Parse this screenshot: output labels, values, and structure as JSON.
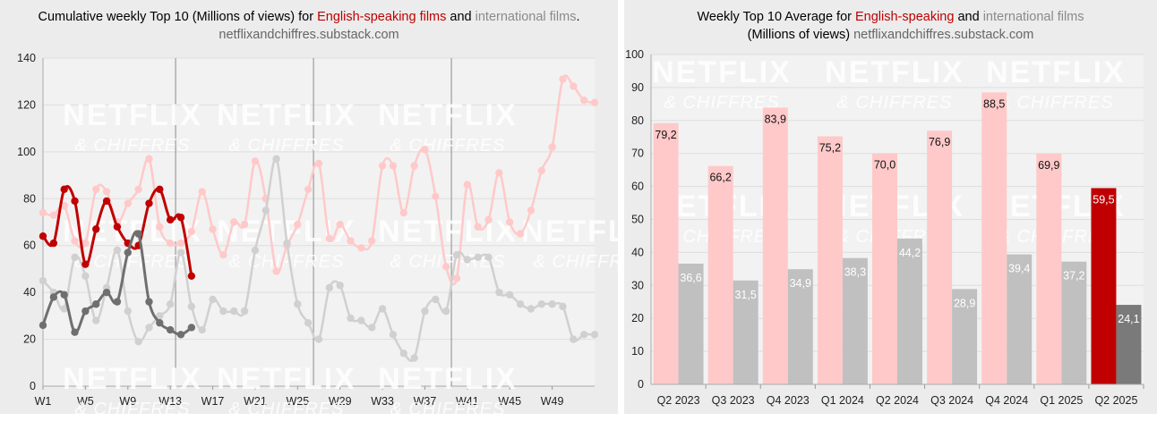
{
  "colors": {
    "english_current": "#c00000",
    "english_past": "#ffc9c9",
    "intl_current": "#6f6f6f",
    "intl_past": "#d0d0d0",
    "eng_bar": "#ffc9c9",
    "eng_bar_current": "#c00000",
    "intl_bar": "#c0c0c0",
    "intl_bar_current": "#7a7a7a",
    "panel_bg": "#ececec",
    "plot_bg": "#f2f2f2"
  },
  "watermark": {
    "line1": "NETFLIX",
    "line2": "& CHIFFRES"
  },
  "left": {
    "title_part1": "Cumulative weekly Top 10 (Millions of views) for ",
    "title_eng": "English-speaking films",
    "title_part2": " and ",
    "title_int": "international films",
    "title_part3": ".",
    "subtitle": "netflixandchiffres.substack.com"
  },
  "right": {
    "title_part1": "Weekly Top 10 Average for ",
    "title_eng": "English-speaking",
    "title_part2": " and ",
    "title_int": "international films",
    "subtitle_part1": "(Millions of views) ",
    "subtitle_src": "netflixandchiffres.substack.com"
  },
  "chart_data": [
    {
      "type": "line",
      "title": "Cumulative weekly Top 10 (Millions of views) for English-speaking films and international films.",
      "ylim": [
        0,
        140
      ],
      "yticks": [
        0,
        20,
        40,
        60,
        80,
        100,
        120,
        140
      ],
      "xlim": [
        1,
        53
      ],
      "xticks": [
        1,
        5,
        9,
        13,
        17,
        21,
        25,
        29,
        33,
        37,
        41,
        45,
        49
      ],
      "xtick_labels": [
        "W1",
        "W5",
        "W9",
        "W13",
        "W17",
        "W21",
        "W25",
        "W29",
        "W33",
        "W37",
        "W41",
        "W45",
        "W49"
      ],
      "grid": true,
      "vlines": [
        13.5,
        26.5,
        39.5
      ],
      "series": [
        {
          "role": "english_past",
          "x": [
            1,
            2,
            3,
            4,
            5,
            6,
            7,
            8,
            9,
            10,
            11,
            12,
            13,
            14,
            15,
            16,
            17,
            18,
            19,
            20,
            21,
            22,
            23,
            24,
            25,
            26,
            27,
            28,
            29,
            30,
            31,
            32,
            33,
            34,
            35,
            36,
            37,
            38,
            39,
            40,
            41,
            42,
            43,
            44,
            45,
            46,
            47,
            48,
            49,
            50,
            51,
            52,
            53
          ],
          "values": [
            74,
            73,
            77,
            62,
            61,
            84,
            83,
            70,
            78,
            84,
            97,
            68,
            61,
            61,
            66,
            83,
            67,
            56,
            70,
            69,
            96,
            80,
            49,
            60,
            69,
            84,
            95,
            63,
            69,
            62,
            59,
            62,
            94,
            94,
            74,
            94,
            101,
            81,
            51,
            46,
            86,
            68,
            71,
            91,
            70,
            65,
            75,
            92,
            102,
            131,
            128,
            122,
            121
          ]
        },
        {
          "role": "intl_past",
          "x": [
            1,
            2,
            3,
            4,
            5,
            6,
            7,
            8,
            9,
            10,
            11,
            12,
            13,
            14,
            15,
            16,
            17,
            18,
            19,
            20,
            21,
            22,
            23,
            24,
            25,
            26,
            27,
            28,
            29,
            30,
            31,
            32,
            33,
            34,
            35,
            36,
            37,
            38,
            39,
            40,
            41,
            42,
            43,
            44,
            45,
            46,
            47,
            48,
            49,
            50,
            51,
            52,
            53
          ],
          "values": [
            45,
            40,
            33,
            55,
            47,
            28,
            42,
            58,
            32,
            19,
            25,
            30,
            35,
            57,
            34,
            24,
            37,
            32,
            32,
            32,
            58,
            75,
            97,
            61,
            35,
            27,
            20,
            42,
            43,
            29,
            28,
            25,
            33,
            22,
            14,
            12,
            32,
            37,
            32,
            56,
            54,
            55,
            55,
            40,
            39,
            35,
            33,
            35,
            35,
            34,
            20,
            22,
            22
          ]
        },
        {
          "role": "english_current",
          "x": [
            1,
            2,
            3,
            4,
            5,
            6,
            7,
            8,
            9,
            10,
            11,
            12,
            13,
            14,
            15
          ],
          "values": [
            64,
            61,
            84,
            79,
            52,
            67,
            79,
            68,
            61,
            60,
            78,
            84,
            71,
            72,
            47
          ]
        },
        {
          "role": "intl_current",
          "x": [
            1,
            2,
            3,
            4,
            5,
            6,
            7,
            8,
            9,
            10,
            11,
            12,
            13,
            14,
            15
          ],
          "values": [
            26,
            38,
            39,
            23,
            32,
            35,
            40,
            36,
            57,
            65,
            36,
            27,
            24,
            22,
            25
          ]
        }
      ]
    },
    {
      "type": "bar",
      "title": "Weekly Top 10 Average for English-speaking and international films (Millions of views)",
      "ylim": [
        0,
        100
      ],
      "yticks": [
        0,
        10,
        20,
        30,
        40,
        50,
        60,
        70,
        80,
        90,
        100
      ],
      "categories": [
        "Q2 2023",
        "Q3 2023",
        "Q4 2023",
        "Q1 2024",
        "Q2 2024",
        "Q3 2024",
        "Q4 2024",
        "Q1 2025",
        "Q2 2025"
      ],
      "series": [
        {
          "role": "english",
          "values": [
            79.2,
            66.2,
            83.9,
            75.2,
            70.0,
            76.9,
            88.5,
            69.9,
            59.5
          ],
          "labels": [
            "79,2",
            "66,2",
            "83,9",
            "75,2",
            "70,0",
            "76,9",
            "88,5",
            "69,9",
            "59,5"
          ]
        },
        {
          "role": "international",
          "values": [
            36.6,
            31.5,
            34.9,
            38.3,
            44.2,
            28.9,
            39.4,
            37.2,
            24.1
          ],
          "labels": [
            "36,6",
            "31,5",
            "34,9",
            "38,3",
            "44,2",
            "28,9",
            "39,4",
            "37,2",
            "24,1"
          ]
        }
      ]
    }
  ]
}
